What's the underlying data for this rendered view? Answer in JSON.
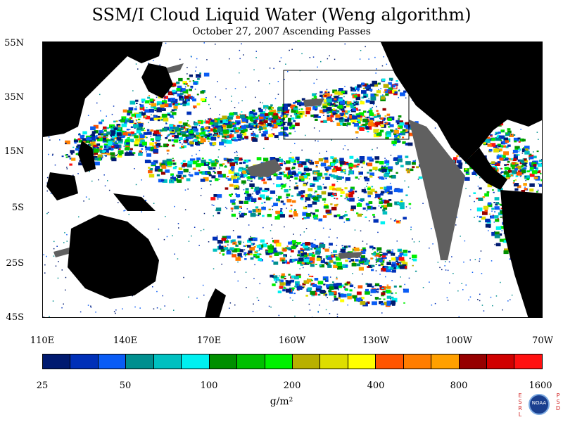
{
  "title": "SSM/I Cloud Liquid Water (Weng algorithm)",
  "subtitle": "October 27, 2007  Ascending Passes",
  "lat_labels": [
    "55N",
    "35N",
    "15N",
    "5S",
    "25S",
    "45S"
  ],
  "lon_labels": [
    "110E",
    "140E",
    "170E",
    "160W",
    "130W",
    "100W",
    "70W"
  ],
  "colorbar": {
    "colors": [
      "#001a70",
      "#0030b8",
      "#0a5cf5",
      "#008f8f",
      "#00c0c0",
      "#00f0f0",
      "#008f00",
      "#00c000",
      "#00f000",
      "#b8b000",
      "#dede00",
      "#ffff00",
      "#ff5500",
      "#ff7d00",
      "#ffa000",
      "#960000",
      "#d00000",
      "#ff1010"
    ],
    "tick_labels": [
      "25",
      "50",
      "100",
      "200",
      "400",
      "800",
      "1600"
    ]
  },
  "units": "g/m²",
  "colors": {
    "land": "#000000",
    "missing_data": "#606060",
    "ocean_clear": "#ffffff",
    "frame": "#000000"
  },
  "credit": {
    "left_letters": [
      "E",
      "S",
      "R",
      "L"
    ],
    "right_letters": [
      "P",
      "S",
      "D"
    ],
    "logo": "NOAA"
  }
}
